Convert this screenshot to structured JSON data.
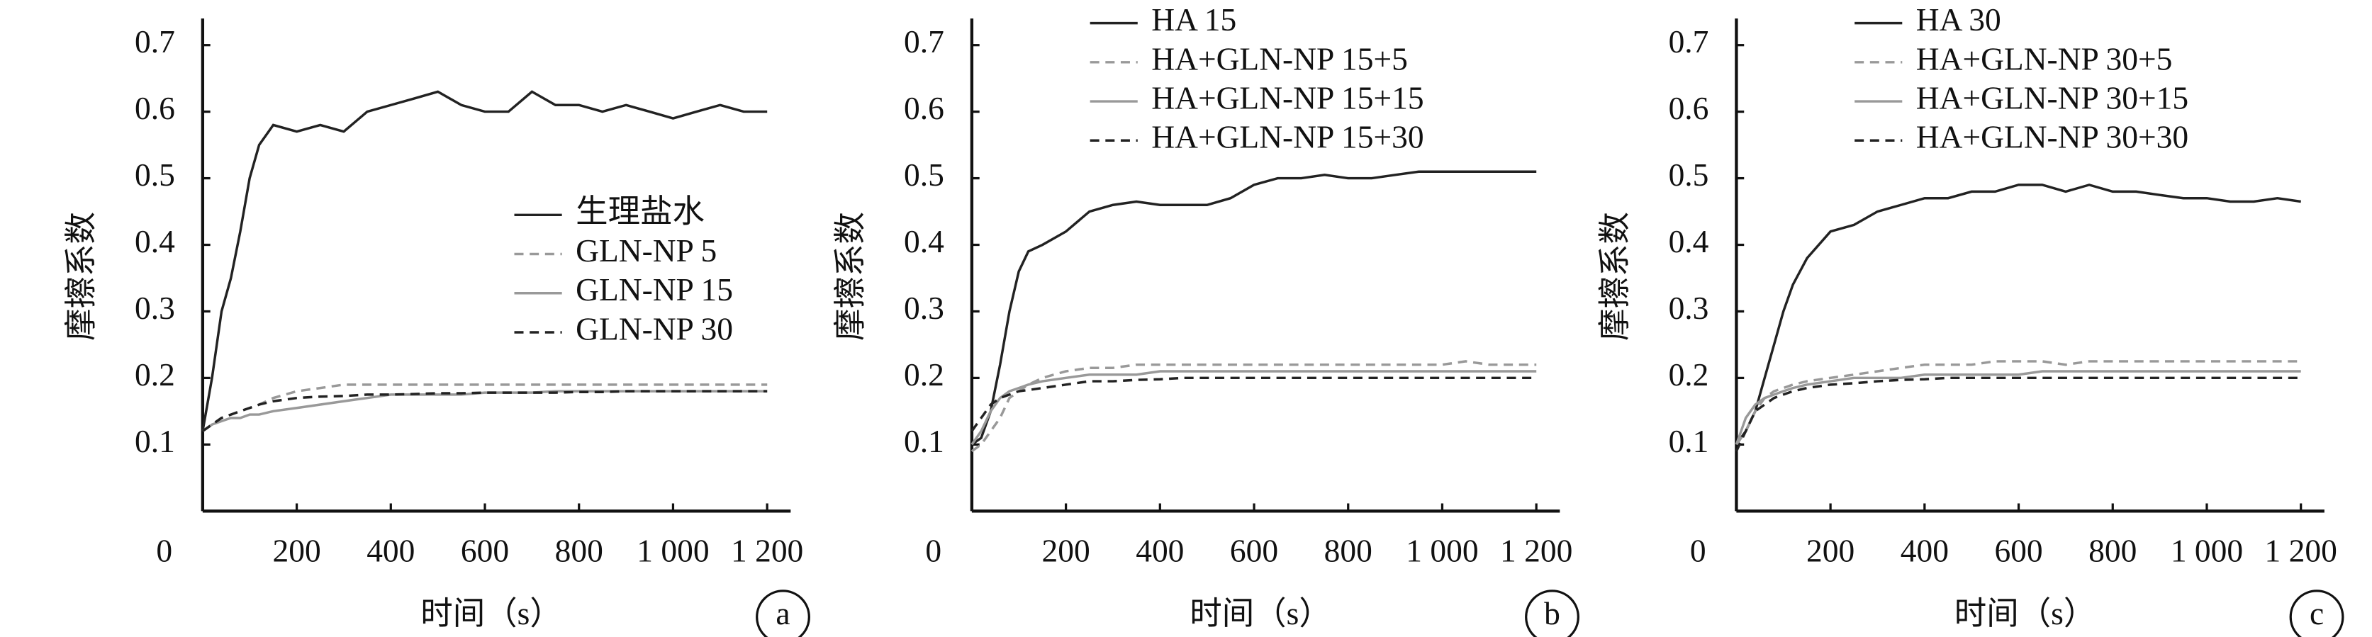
{
  "chart_data": [
    {
      "type": "line",
      "ylabel": "摩擦系数",
      "xlabel": "时间（s）",
      "label": "a",
      "legend": "center right",
      "x": [
        0,
        20,
        40,
        60,
        80,
        100,
        120,
        150,
        200,
        250,
        300,
        350,
        400,
        450,
        500,
        550,
        600,
        650,
        700,
        750,
        800,
        850,
        900,
        950,
        1000,
        1050,
        1100,
        1150,
        1200
      ],
      "xlim": [
        0,
        1250
      ],
      "ylim": [
        0,
        0.74
      ],
      "xticks": [
        0,
        200,
        400,
        600,
        800,
        {
          "value": 1000,
          "label": "1 000"
        },
        {
          "value": 1200,
          "label": "1 200"
        }
      ],
      "yticks": [
        0.1,
        0.2,
        0.3,
        0.4,
        0.5,
        0.6,
        0.7
      ],
      "series": [
        {
          "name": "生理盐水",
          "color": "#222222",
          "dash": "solid",
          "values": [
            0.12,
            0.2,
            0.3,
            0.35,
            0.42,
            0.5,
            0.55,
            0.58,
            0.57,
            0.58,
            0.57,
            0.6,
            0.61,
            0.62,
            0.63,
            0.61,
            0.6,
            0.6,
            0.63,
            0.61,
            0.61,
            0.6,
            0.61,
            0.6,
            0.59,
            0.6,
            0.61,
            0.6,
            0.6
          ]
        },
        {
          "name": "GLN-NP 5",
          "color": "#999999",
          "dash": "dashed",
          "values": [
            0.12,
            0.13,
            0.14,
            0.145,
            0.15,
            0.155,
            0.16,
            0.17,
            0.18,
            0.185,
            0.19,
            0.19,
            0.19,
            0.19,
            0.19,
            0.19,
            0.19,
            0.19,
            0.19,
            0.19,
            0.19,
            0.19,
            0.19,
            0.19,
            0.19,
            0.19,
            0.19,
            0.19,
            0.19
          ]
        },
        {
          "name": "GLN-NP 15",
          "color": "#999999",
          "dash": "solid",
          "values": [
            0.12,
            0.13,
            0.135,
            0.14,
            0.14,
            0.145,
            0.145,
            0.15,
            0.155,
            0.16,
            0.165,
            0.17,
            0.175,
            0.175,
            0.175,
            0.175,
            0.178,
            0.178,
            0.178,
            0.18,
            0.18,
            0.18,
            0.18,
            0.18,
            0.18,
            0.18,
            0.18,
            0.18,
            0.18
          ]
        },
        {
          "name": "GLN-NP 30",
          "color": "#222222",
          "dash": "dashed",
          "values": [
            0.12,
            0.13,
            0.14,
            0.145,
            0.15,
            0.155,
            0.16,
            0.165,
            0.17,
            0.172,
            0.173,
            0.175,
            0.175,
            0.176,
            0.177,
            0.177,
            0.178,
            0.178,
            0.178,
            0.178,
            0.179,
            0.179,
            0.18,
            0.18,
            0.18,
            0.18,
            0.18,
            0.18,
            0.18
          ]
        }
      ]
    },
    {
      "type": "line",
      "ylabel": "摩擦系数",
      "xlabel": "时间（s）",
      "label": "b",
      "legend": "upper left",
      "x": [
        0,
        20,
        40,
        60,
        80,
        100,
        120,
        150,
        200,
        250,
        300,
        350,
        400,
        450,
        500,
        550,
        600,
        650,
        700,
        750,
        800,
        850,
        900,
        950,
        1000,
        1050,
        1100,
        1150,
        1200
      ],
      "xlim": [
        0,
        1250
      ],
      "ylim": [
        0,
        0.74
      ],
      "xticks": [
        0,
        200,
        400,
        600,
        800,
        {
          "value": 1000,
          "label": "1 000"
        },
        {
          "value": 1200,
          "label": "1 200"
        }
      ],
      "yticks": [
        0.1,
        0.2,
        0.3,
        0.4,
        0.5,
        0.6,
        0.7
      ],
      "series": [
        {
          "name": "HA 15",
          "color": "#222222",
          "dash": "solid",
          "values": [
            0.1,
            0.11,
            0.15,
            0.22,
            0.3,
            0.36,
            0.39,
            0.4,
            0.42,
            0.45,
            0.46,
            0.465,
            0.46,
            0.46,
            0.46,
            0.47,
            0.49,
            0.5,
            0.5,
            0.505,
            0.5,
            0.5,
            0.505,
            0.51,
            0.51,
            0.51,
            0.51,
            0.51,
            0.51
          ]
        },
        {
          "name": "HA+GLN-NP 15+5",
          "color": "#999999",
          "dash": "dashed",
          "values": [
            0.09,
            0.1,
            0.12,
            0.14,
            0.17,
            0.18,
            0.19,
            0.2,
            0.21,
            0.215,
            0.215,
            0.22,
            0.22,
            0.22,
            0.22,
            0.22,
            0.22,
            0.22,
            0.22,
            0.22,
            0.22,
            0.22,
            0.22,
            0.22,
            0.22,
            0.225,
            0.22,
            0.22,
            0.22
          ]
        },
        {
          "name": "HA+GLN-NP 15+15",
          "color": "#999999",
          "dash": "solid",
          "values": [
            0.1,
            0.12,
            0.15,
            0.17,
            0.18,
            0.185,
            0.19,
            0.195,
            0.2,
            0.205,
            0.205,
            0.205,
            0.21,
            0.21,
            0.21,
            0.21,
            0.21,
            0.21,
            0.21,
            0.21,
            0.21,
            0.21,
            0.21,
            0.21,
            0.21,
            0.21,
            0.21,
            0.21,
            0.21
          ]
        },
        {
          "name": "HA+GLN-NP 15+30",
          "color": "#222222",
          "dash": "dashed",
          "values": [
            0.12,
            0.14,
            0.16,
            0.17,
            0.175,
            0.18,
            0.182,
            0.185,
            0.19,
            0.195,
            0.195,
            0.197,
            0.198,
            0.2,
            0.2,
            0.2,
            0.2,
            0.2,
            0.2,
            0.2,
            0.2,
            0.2,
            0.2,
            0.2,
            0.2,
            0.2,
            0.2,
            0.2,
            0.2
          ]
        }
      ]
    },
    {
      "type": "line",
      "ylabel": "摩擦系数",
      "xlabel": "时间（s）",
      "label": "c",
      "legend": "upper left",
      "x": [
        0,
        20,
        40,
        60,
        80,
        100,
        120,
        150,
        200,
        250,
        300,
        350,
        400,
        450,
        500,
        550,
        600,
        650,
        700,
        750,
        800,
        850,
        900,
        950,
        1000,
        1050,
        1100,
        1150,
        1200
      ],
      "xlim": [
        0,
        1250
      ],
      "ylim": [
        0,
        0.74
      ],
      "xticks": [
        0,
        200,
        400,
        600,
        800,
        {
          "value": 1000,
          "label": "1 000"
        },
        {
          "value": 1200,
          "label": "1 200"
        }
      ],
      "yticks": [
        0.1,
        0.2,
        0.3,
        0.4,
        0.5,
        0.6,
        0.7
      ],
      "series": [
        {
          "name": "HA 30",
          "color": "#222222",
          "dash": "solid",
          "values": [
            0.1,
            0.12,
            0.15,
            0.2,
            0.25,
            0.3,
            0.34,
            0.38,
            0.42,
            0.43,
            0.45,
            0.46,
            0.47,
            0.47,
            0.48,
            0.48,
            0.49,
            0.49,
            0.48,
            0.49,
            0.48,
            0.48,
            0.475,
            0.47,
            0.47,
            0.465,
            0.465,
            0.47,
            0.465
          ]
        },
        {
          "name": "HA+GLN-NP 30+5",
          "color": "#999999",
          "dash": "dashed",
          "values": [
            0.1,
            0.12,
            0.15,
            0.17,
            0.18,
            0.185,
            0.19,
            0.195,
            0.2,
            0.205,
            0.21,
            0.215,
            0.22,
            0.22,
            0.22,
            0.225,
            0.225,
            0.225,
            0.22,
            0.225,
            0.225,
            0.225,
            0.225,
            0.225,
            0.225,
            0.225,
            0.225,
            0.225,
            0.225
          ]
        },
        {
          "name": "HA+GLN-NP 30+15",
          "color": "#999999",
          "dash": "solid",
          "values": [
            0.1,
            0.14,
            0.16,
            0.17,
            0.175,
            0.18,
            0.185,
            0.19,
            0.195,
            0.2,
            0.2,
            0.2,
            0.205,
            0.205,
            0.205,
            0.205,
            0.205,
            0.21,
            0.21,
            0.21,
            0.21,
            0.21,
            0.21,
            0.21,
            0.21,
            0.21,
            0.21,
            0.21,
            0.21
          ]
        },
        {
          "name": "HA+GLN-NP 30+30",
          "color": "#222222",
          "dash": "dashed",
          "values": [
            0.09,
            0.12,
            0.15,
            0.16,
            0.17,
            0.175,
            0.18,
            0.185,
            0.19,
            0.192,
            0.195,
            0.197,
            0.198,
            0.2,
            0.2,
            0.2,
            0.2,
            0.2,
            0.2,
            0.2,
            0.2,
            0.2,
            0.2,
            0.2,
            0.2,
            0.2,
            0.2,
            0.2,
            0.2
          ]
        }
      ]
    }
  ]
}
